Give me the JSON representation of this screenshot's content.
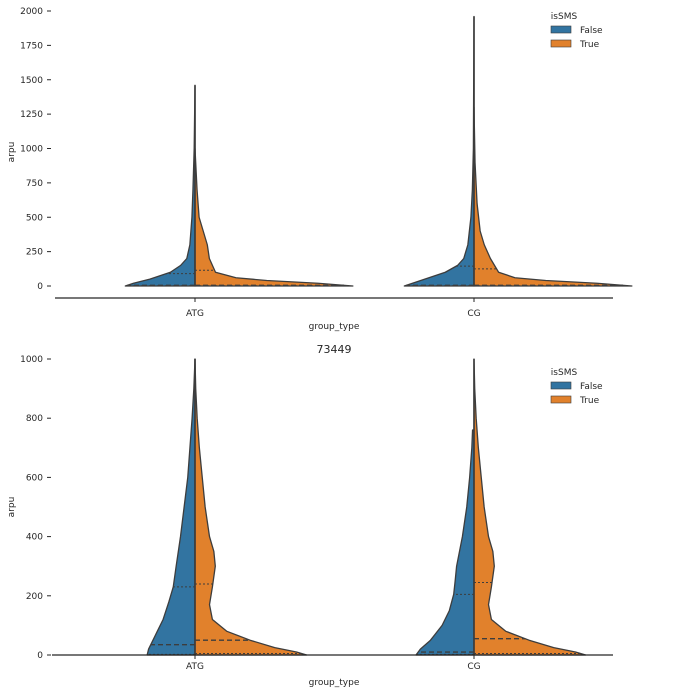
{
  "chart_data": [
    {
      "type": "violin",
      "subtype": "split-violin",
      "title": "",
      "xlabel": "group_type",
      "ylabel": "arpu",
      "ylim": [
        -90,
        2000
      ],
      "yticks": [
        0,
        250,
        500,
        750,
        1000,
        1250,
        1500,
        1750,
        2000
      ],
      "categories": [
        "ATG",
        "CG"
      ],
      "hue": "isSMS",
      "legend": {
        "title": "isSMS",
        "entries": [
          "False",
          "True"
        ],
        "position": "top-right"
      },
      "colors": {
        "False": "#3274a1",
        "True": "#e1812c"
      },
      "inner": "quartile",
      "series": [
        {
          "category": "ATG",
          "False": {
            "max": 1460,
            "q1": 2,
            "median": 5,
            "q3": 90,
            "profile": [
              [
                0,
                0.34
              ],
              [
                20,
                0.3
              ],
              [
                50,
                0.22
              ],
              [
                100,
                0.12
              ],
              [
                150,
                0.07
              ],
              [
                200,
                0.04
              ],
              [
                300,
                0.025
              ],
              [
                500,
                0.015
              ],
              [
                700,
                0.01
              ],
              [
                1000,
                0.004
              ],
              [
                1460,
                0.0
              ]
            ]
          },
          "True": {
            "max": 1000,
            "q1": 2,
            "median": 5,
            "q3": 115,
            "profile": [
              [
                0,
                0.77
              ],
              [
                20,
                0.6
              ],
              [
                40,
                0.35
              ],
              [
                60,
                0.2
              ],
              [
                100,
                0.1
              ],
              [
                200,
                0.07
              ],
              [
                300,
                0.06
              ],
              [
                400,
                0.04
              ],
              [
                500,
                0.02
              ],
              [
                700,
                0.01
              ],
              [
                1000,
                0.0
              ]
            ]
          }
        },
        {
          "category": "CG",
          "False": {
            "max": 1960,
            "q1": 2,
            "median": 5,
            "q3": 145,
            "profile": [
              [
                0,
                0.34
              ],
              [
                20,
                0.3
              ],
              [
                60,
                0.22
              ],
              [
                100,
                0.14
              ],
              [
                150,
                0.08
              ],
              [
                200,
                0.05
              ],
              [
                300,
                0.03
              ],
              [
                500,
                0.015
              ],
              [
                700,
                0.008
              ],
              [
                1000,
                0.003
              ],
              [
                1960,
                0.0
              ]
            ]
          },
          "True": {
            "max": 1300,
            "q1": 2,
            "median": 5,
            "q3": 125,
            "profile": [
              [
                0,
                0.77
              ],
              [
                20,
                0.6
              ],
              [
                40,
                0.35
              ],
              [
                60,
                0.2
              ],
              [
                100,
                0.12
              ],
              [
                200,
                0.08
              ],
              [
                300,
                0.05
              ],
              [
                400,
                0.03
              ],
              [
                600,
                0.015
              ],
              [
                900,
                0.005
              ],
              [
                1300,
                0.0
              ]
            ]
          }
        }
      ]
    },
    {
      "type": "violin",
      "subtype": "split-violin",
      "title": "73449",
      "xlabel": "group_type",
      "ylabel": "arpu",
      "ylim": [
        0,
        1000
      ],
      "yticks": [
        0,
        200,
        400,
        600,
        800,
        1000
      ],
      "categories": [
        "ATG",
        "CG"
      ],
      "hue": "isSMS",
      "legend": {
        "title": "isSMS",
        "entries": [
          "False",
          "True"
        ],
        "position": "top-right"
      },
      "colors": {
        "False": "#3274a1",
        "True": "#e1812c"
      },
      "inner": "quartile",
      "series": [
        {
          "category": "ATG",
          "False": {
            "max": 1000,
            "q1": 2,
            "median": 35,
            "q3": 230,
            "profile": [
              [
                0,
                0.33
              ],
              [
                20,
                0.32
              ],
              [
                40,
                0.3
              ],
              [
                80,
                0.26
              ],
              [
                120,
                0.22
              ],
              [
                180,
                0.18
              ],
              [
                230,
                0.15
              ],
              [
                300,
                0.13
              ],
              [
                400,
                0.1
              ],
              [
                500,
                0.075
              ],
              [
                600,
                0.05
              ],
              [
                700,
                0.035
              ],
              [
                800,
                0.02
              ],
              [
                900,
                0.008
              ],
              [
                1000,
                0.0
              ]
            ]
          },
          "True": {
            "max": 1000,
            "q1": 5,
            "median": 50,
            "q3": 240,
            "profile": [
              [
                0,
                0.77
              ],
              [
                10,
                0.7
              ],
              [
                25,
                0.55
              ],
              [
                50,
                0.38
              ],
              [
                80,
                0.22
              ],
              [
                120,
                0.12
              ],
              [
                170,
                0.1
              ],
              [
                230,
                0.12
              ],
              [
                300,
                0.14
              ],
              [
                350,
                0.13
              ],
              [
                400,
                0.1
              ],
              [
                500,
                0.07
              ],
              [
                600,
                0.05
              ],
              [
                700,
                0.03
              ],
              [
                800,
                0.015
              ],
              [
                900,
                0.005
              ],
              [
                1000,
                0.0
              ]
            ]
          }
        },
        {
          "category": "CG",
          "False": {
            "max": 760,
            "q1": 2,
            "median": 10,
            "q3": 205,
            "profile": [
              [
                0,
                0.4
              ],
              [
                20,
                0.37
              ],
              [
                50,
                0.3
              ],
              [
                100,
                0.22
              ],
              [
                150,
                0.17
              ],
              [
                205,
                0.14
              ],
              [
                250,
                0.13
              ],
              [
                300,
                0.12
              ],
              [
                400,
                0.08
              ],
              [
                500,
                0.05
              ],
              [
                600,
                0.03
              ],
              [
                700,
                0.015
              ],
              [
                760,
                0.01
              ]
            ]
          },
          "True": {
            "max": 1000,
            "q1": 5,
            "median": 55,
            "q3": 245,
            "profile": [
              [
                0,
                0.77
              ],
              [
                10,
                0.7
              ],
              [
                25,
                0.55
              ],
              [
                50,
                0.38
              ],
              [
                80,
                0.22
              ],
              [
                120,
                0.12
              ],
              [
                170,
                0.1
              ],
              [
                230,
                0.12
              ],
              [
                300,
                0.14
              ],
              [
                350,
                0.13
              ],
              [
                400,
                0.1
              ],
              [
                500,
                0.07
              ],
              [
                600,
                0.05
              ],
              [
                700,
                0.03
              ],
              [
                800,
                0.015
              ],
              [
                900,
                0.005
              ],
              [
                1000,
                0.0
              ]
            ]
          }
        }
      ]
    }
  ]
}
